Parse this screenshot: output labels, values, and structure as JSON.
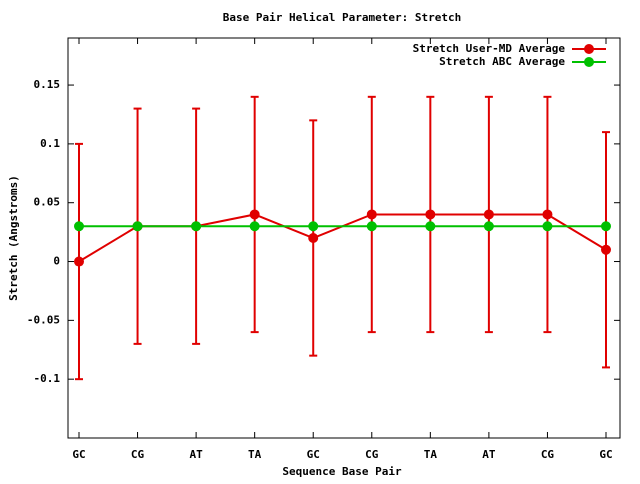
{
  "chart_data": {
    "type": "line",
    "title": "Base Pair Helical Parameter: Stretch",
    "x_label": "Sequence Base Pair",
    "y_label": "Stretch (Angstroms)",
    "categories": [
      "GC",
      "CG",
      "AT",
      "TA",
      "GC",
      "CG",
      "TA",
      "AT",
      "CG",
      "GC"
    ],
    "series": [
      {
        "name": "Stretch User-MD Average",
        "color": "#e00000",
        "values": [
          0,
          0.03,
          0.03,
          0.04,
          0.02,
          0.04,
          0.04,
          0.04,
          0.04,
          0.01
        ],
        "errors": [
          0.1,
          0.1,
          0.1,
          0.1,
          0.1,
          0.1,
          0.1,
          0.1,
          0.1,
          0.1
        ]
      },
      {
        "name": "Stretch ABC Average",
        "color": "#00c000",
        "values": [
          0.03,
          0.03,
          0.03,
          0.03,
          0.03,
          0.03,
          0.03,
          0.03,
          0.03,
          0.03
        ]
      }
    ],
    "ylim": [
      -0.15,
      0.19
    ],
    "yticks": [
      -0.1,
      -0.05,
      0,
      0.05,
      0.1,
      0.15
    ],
    "legend": "top-right"
  }
}
